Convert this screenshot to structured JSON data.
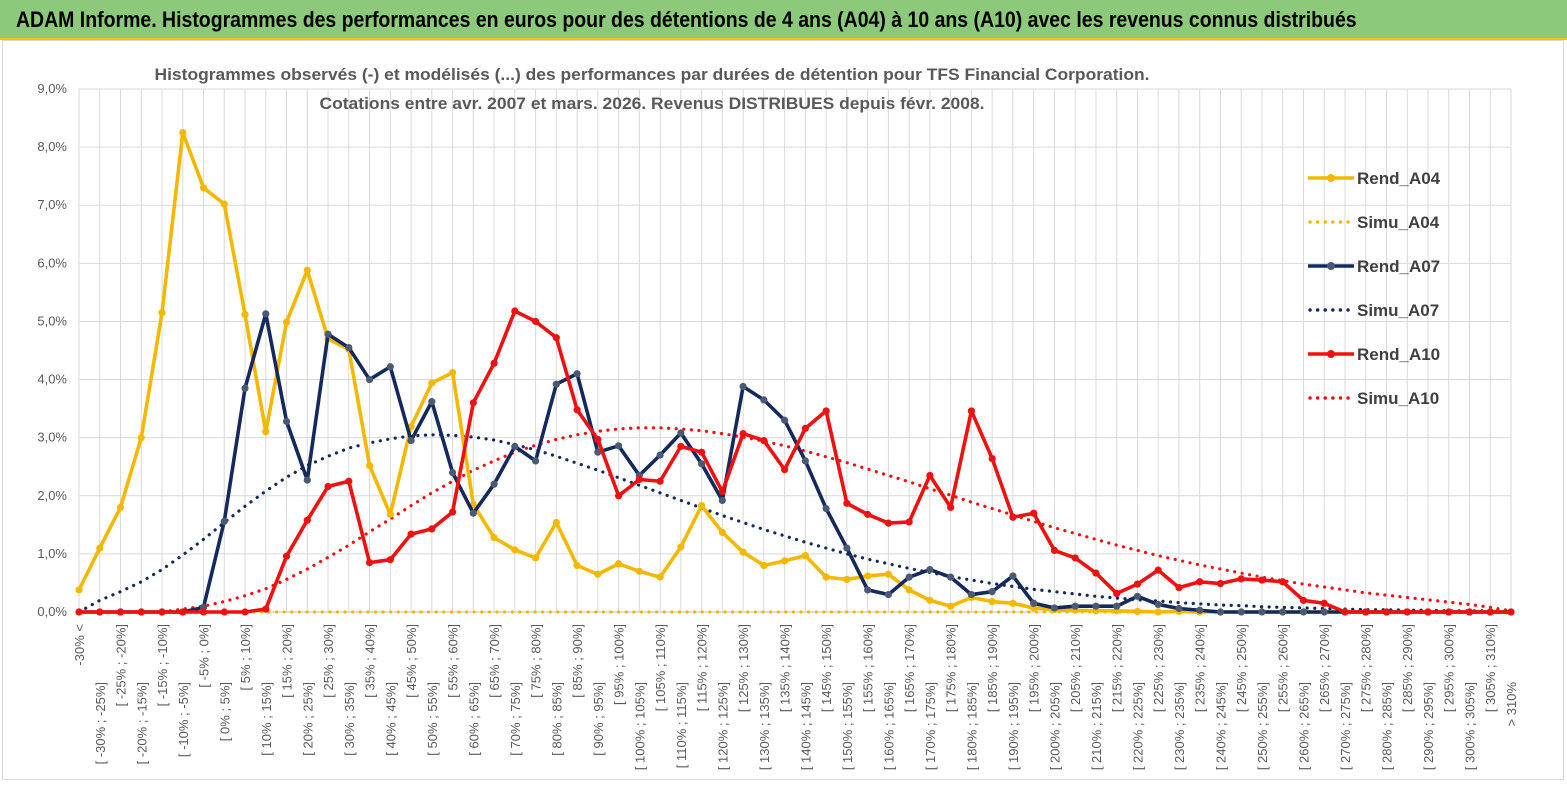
{
  "banner": {
    "title": "ADAM Informe. Histogrammes des performances en euros pour des détentions de 4 ans (A04) à 10 ans (A10) avec les revenus connus distribués"
  },
  "chart_data": {
    "type": "line",
    "title_line1": "Histogrammes observés (-) et modélisés (...) des performances par durées de détention pour TFS Financial Corporation.",
    "title_line2": "Cotations entre avr. 2007 et mars. 2026. Revenus DISTRIBUES depuis févr. 2008.",
    "ylim": [
      0,
      9
    ],
    "yticks": [
      "0,0%",
      "1,0%",
      "2,0%",
      "3,0%",
      "4,0%",
      "5,0%",
      "6,0%",
      "7,0%",
      "8,0%",
      "9,0%"
    ],
    "grid": true,
    "legend_position": "right",
    "categories": [
      "-30% <",
      "[ -30% ; -25%]",
      "[ -25% ; -20%]",
      "[ -20% ; -15%]",
      "[ -15% ; -10%]",
      "[ -10% ; -5%]",
      "[ -5% ; 0%]",
      "[ 0% ; 5%]",
      "[ 5% ; 10%]",
      "[ 10% ; 15%]",
      "[ 15% ; 20%]",
      "[ 20% ; 25%]",
      "[ 25% ; 30%]",
      "[ 30% ; 35%]",
      "[ 35% ; 40%]",
      "[ 40% ; 45%]",
      "[ 45% ; 50%]",
      "[ 50% ; 55%]",
      "[ 55% ; 60%]",
      "[ 60% ; 65%]",
      "[ 65% ; 70%]",
      "[ 70% ; 75%]",
      "[ 75% ; 80%]",
      "[ 80% ; 85%]",
      "[ 85% ; 90%]",
      "[ 90% ; 95%]",
      "[ 95% ; 100%]",
      "[ 100% ; 105%]",
      "[ 105% ; 110%]",
      "[ 110% ; 115%]",
      "[ 115% ; 120%]",
      "[ 120% ; 125%]",
      "[ 125% ; 130%]",
      "[ 130% ; 135%]",
      "[ 135% ; 140%]",
      "[ 140% ; 145%]",
      "[ 145% ; 150%]",
      "[ 150% ; 155%]",
      "[ 155% ; 160%]",
      "[ 160% ; 165%]",
      "[ 165% ; 170%]",
      "[ 170% ; 175%]",
      "[ 175% ; 180%]",
      "[ 180% ; 185%]",
      "[ 185% ; 190%]",
      "[ 190% ; 195%]",
      "[ 195% ; 200%]",
      "[ 200% ; 205%]",
      "[ 205% ; 210%]",
      "[ 210% ; 215%]",
      "[ 215% ; 220%]",
      "[ 220% ; 225%]",
      "[ 225% ; 230%]",
      "[ 230% ; 235%]",
      "[ 235% ; 240%]",
      "[ 240% ; 245%]",
      "[ 245% ; 250%]",
      "[ 250% ; 255%]",
      "[ 255% ; 260%]",
      "[ 260% ; 265%]",
      "[ 265% ; 270%]",
      "[ 270% ; 275%]",
      "[ 275% ; 280%]",
      "[ 280% ; 285%]",
      "[ 285% ; 290%]",
      "[ 290% ; 295%]",
      "[ 295% ; 300%]",
      "[ 300% ; 305%]",
      "[ 305% ; 310%]",
      "> 310%"
    ],
    "series": [
      {
        "name": "Rend_A04",
        "style": "solid",
        "color": "#f5b800",
        "values": [
          0.38,
          1.1,
          1.8,
          3.0,
          5.15,
          8.25,
          7.3,
          7.02,
          5.12,
          3.1,
          4.99,
          5.88,
          4.7,
          4.52,
          2.52,
          1.68,
          3.19,
          3.94,
          4.12,
          1.85,
          1.28,
          1.07,
          0.93,
          1.54,
          0.8,
          0.65,
          0.83,
          0.7,
          0.6,
          1.12,
          1.83,
          1.37,
          1.03,
          0.8,
          0.88,
          0.97,
          0.6,
          0.56,
          0.62,
          0.65,
          0.38,
          0.2,
          0.1,
          0.25,
          0.18,
          0.15,
          0.07,
          0.04,
          0.03,
          0.02,
          0.02,
          0.01,
          0.0,
          0.01,
          0,
          0,
          0,
          0,
          0,
          0,
          0,
          0,
          0,
          0,
          0,
          0,
          0,
          0,
          0,
          0
        ]
      },
      {
        "name": "Simu_A04",
        "style": "dotted",
        "color": "#f5b800",
        "values": [
          0,
          0,
          0,
          0,
          0,
          0,
          0,
          0,
          0,
          0,
          0,
          0,
          0,
          0,
          0,
          0,
          0,
          0,
          0,
          0,
          0,
          0,
          0,
          0,
          0,
          0,
          0,
          0,
          0,
          0,
          0,
          0,
          0,
          0,
          0,
          0,
          0,
          0,
          0,
          0,
          0,
          0,
          0,
          0,
          0,
          0,
          0,
          0,
          0,
          0,
          0,
          0,
          0,
          0,
          0,
          0,
          0,
          0,
          0,
          0,
          0,
          0,
          0,
          0,
          0,
          0,
          0,
          0,
          0,
          0
        ]
      },
      {
        "name": "Rend_A07",
        "style": "solid",
        "color": "#152a5c",
        "values": [
          0,
          0,
          0,
          0,
          0,
          0,
          0.08,
          1.56,
          3.85,
          5.13,
          3.28,
          2.27,
          4.78,
          4.55,
          4.0,
          4.22,
          2.95,
          3.62,
          2.4,
          1.7,
          2.2,
          2.85,
          2.6,
          3.92,
          4.1,
          2.75,
          2.86,
          2.35,
          2.7,
          3.08,
          2.55,
          1.92,
          3.88,
          3.65,
          3.3,
          2.6,
          1.78,
          1.1,
          0.38,
          0.3,
          0.6,
          0.73,
          0.6,
          0.3,
          0.35,
          0.62,
          0.15,
          0.07,
          0.1,
          0.1,
          0.1,
          0.27,
          0.13,
          0.06,
          0.03,
          0.0,
          0.0,
          0.0,
          0.0,
          0.0,
          0.0,
          0.0,
          0.0,
          0.0,
          0.0,
          0.0,
          0.0,
          0.0,
          0.0,
          0.0
        ]
      },
      {
        "name": "Simu_A07",
        "style": "dotted",
        "color": "#152a5c",
        "values": [
          0,
          0.2,
          0.35,
          0.52,
          0.73,
          0.98,
          1.25,
          1.54,
          1.82,
          2.08,
          2.32,
          2.52,
          2.68,
          2.82,
          2.91,
          2.98,
          3.03,
          3.05,
          3.04,
          3.01,
          2.96,
          2.88,
          2.79,
          2.68,
          2.56,
          2.44,
          2.31,
          2.18,
          2.05,
          1.92,
          1.79,
          1.66,
          1.54,
          1.42,
          1.31,
          1.2,
          1.1,
          1.0,
          0.91,
          0.83,
          0.75,
          0.68,
          0.61,
          0.55,
          0.49,
          0.44,
          0.39,
          0.35,
          0.31,
          0.27,
          0.24,
          0.21,
          0.19,
          0.16,
          0.14,
          0.12,
          0.11,
          0.09,
          0.08,
          0.07,
          0.06,
          0.05,
          0.04,
          0.04,
          0.03,
          0.03,
          0.02,
          0.02,
          0.02,
          0.01
        ]
      },
      {
        "name": "Rend_A10",
        "style": "solid",
        "color": "#f01010",
        "values": [
          0,
          0,
          0,
          0,
          0,
          0,
          0,
          0,
          0,
          0.05,
          0.96,
          1.58,
          2.16,
          2.25,
          0.85,
          0.9,
          1.34,
          1.43,
          1.72,
          3.6,
          4.28,
          5.18,
          5.0,
          4.72,
          3.48,
          2.97,
          2.0,
          2.28,
          2.25,
          2.85,
          2.75,
          2.07,
          3.07,
          2.95,
          2.45,
          3.16,
          3.46,
          1.87,
          1.68,
          1.53,
          1.55,
          2.35,
          1.8,
          3.46,
          2.64,
          1.63,
          1.7,
          1.06,
          0.93,
          0.67,
          0.32,
          0.48,
          0.72,
          0.42,
          0.52,
          0.49,
          0.57,
          0.55,
          0.52,
          0.2,
          0.15,
          0.0,
          0.0,
          0.0,
          0.0,
          0.0,
          0.0,
          0.0,
          0.0,
          0.0
        ]
      },
      {
        "name": "Simu_A10",
        "style": "dotted",
        "color": "#f01010",
        "values": [
          0,
          0,
          0,
          0,
          0,
          0.05,
          0.1,
          0.18,
          0.28,
          0.4,
          0.56,
          0.74,
          0.94,
          1.15,
          1.38,
          1.6,
          1.83,
          2.05,
          2.25,
          2.44,
          2.6,
          2.75,
          2.87,
          2.97,
          3.05,
          3.11,
          3.15,
          3.17,
          3.17,
          3.15,
          3.12,
          3.07,
          3.01,
          2.94,
          2.86,
          2.77,
          2.67,
          2.57,
          2.46,
          2.35,
          2.24,
          2.12,
          2.01,
          1.89,
          1.78,
          1.67,
          1.56,
          1.45,
          1.35,
          1.25,
          1.15,
          1.06,
          0.97,
          0.89,
          0.81,
          0.74,
          0.67,
          0.6,
          0.54,
          0.48,
          0.43,
          0.38,
          0.33,
          0.29,
          0.25,
          0.21,
          0.17,
          0.13,
          0.08,
          0.02
        ]
      }
    ]
  }
}
